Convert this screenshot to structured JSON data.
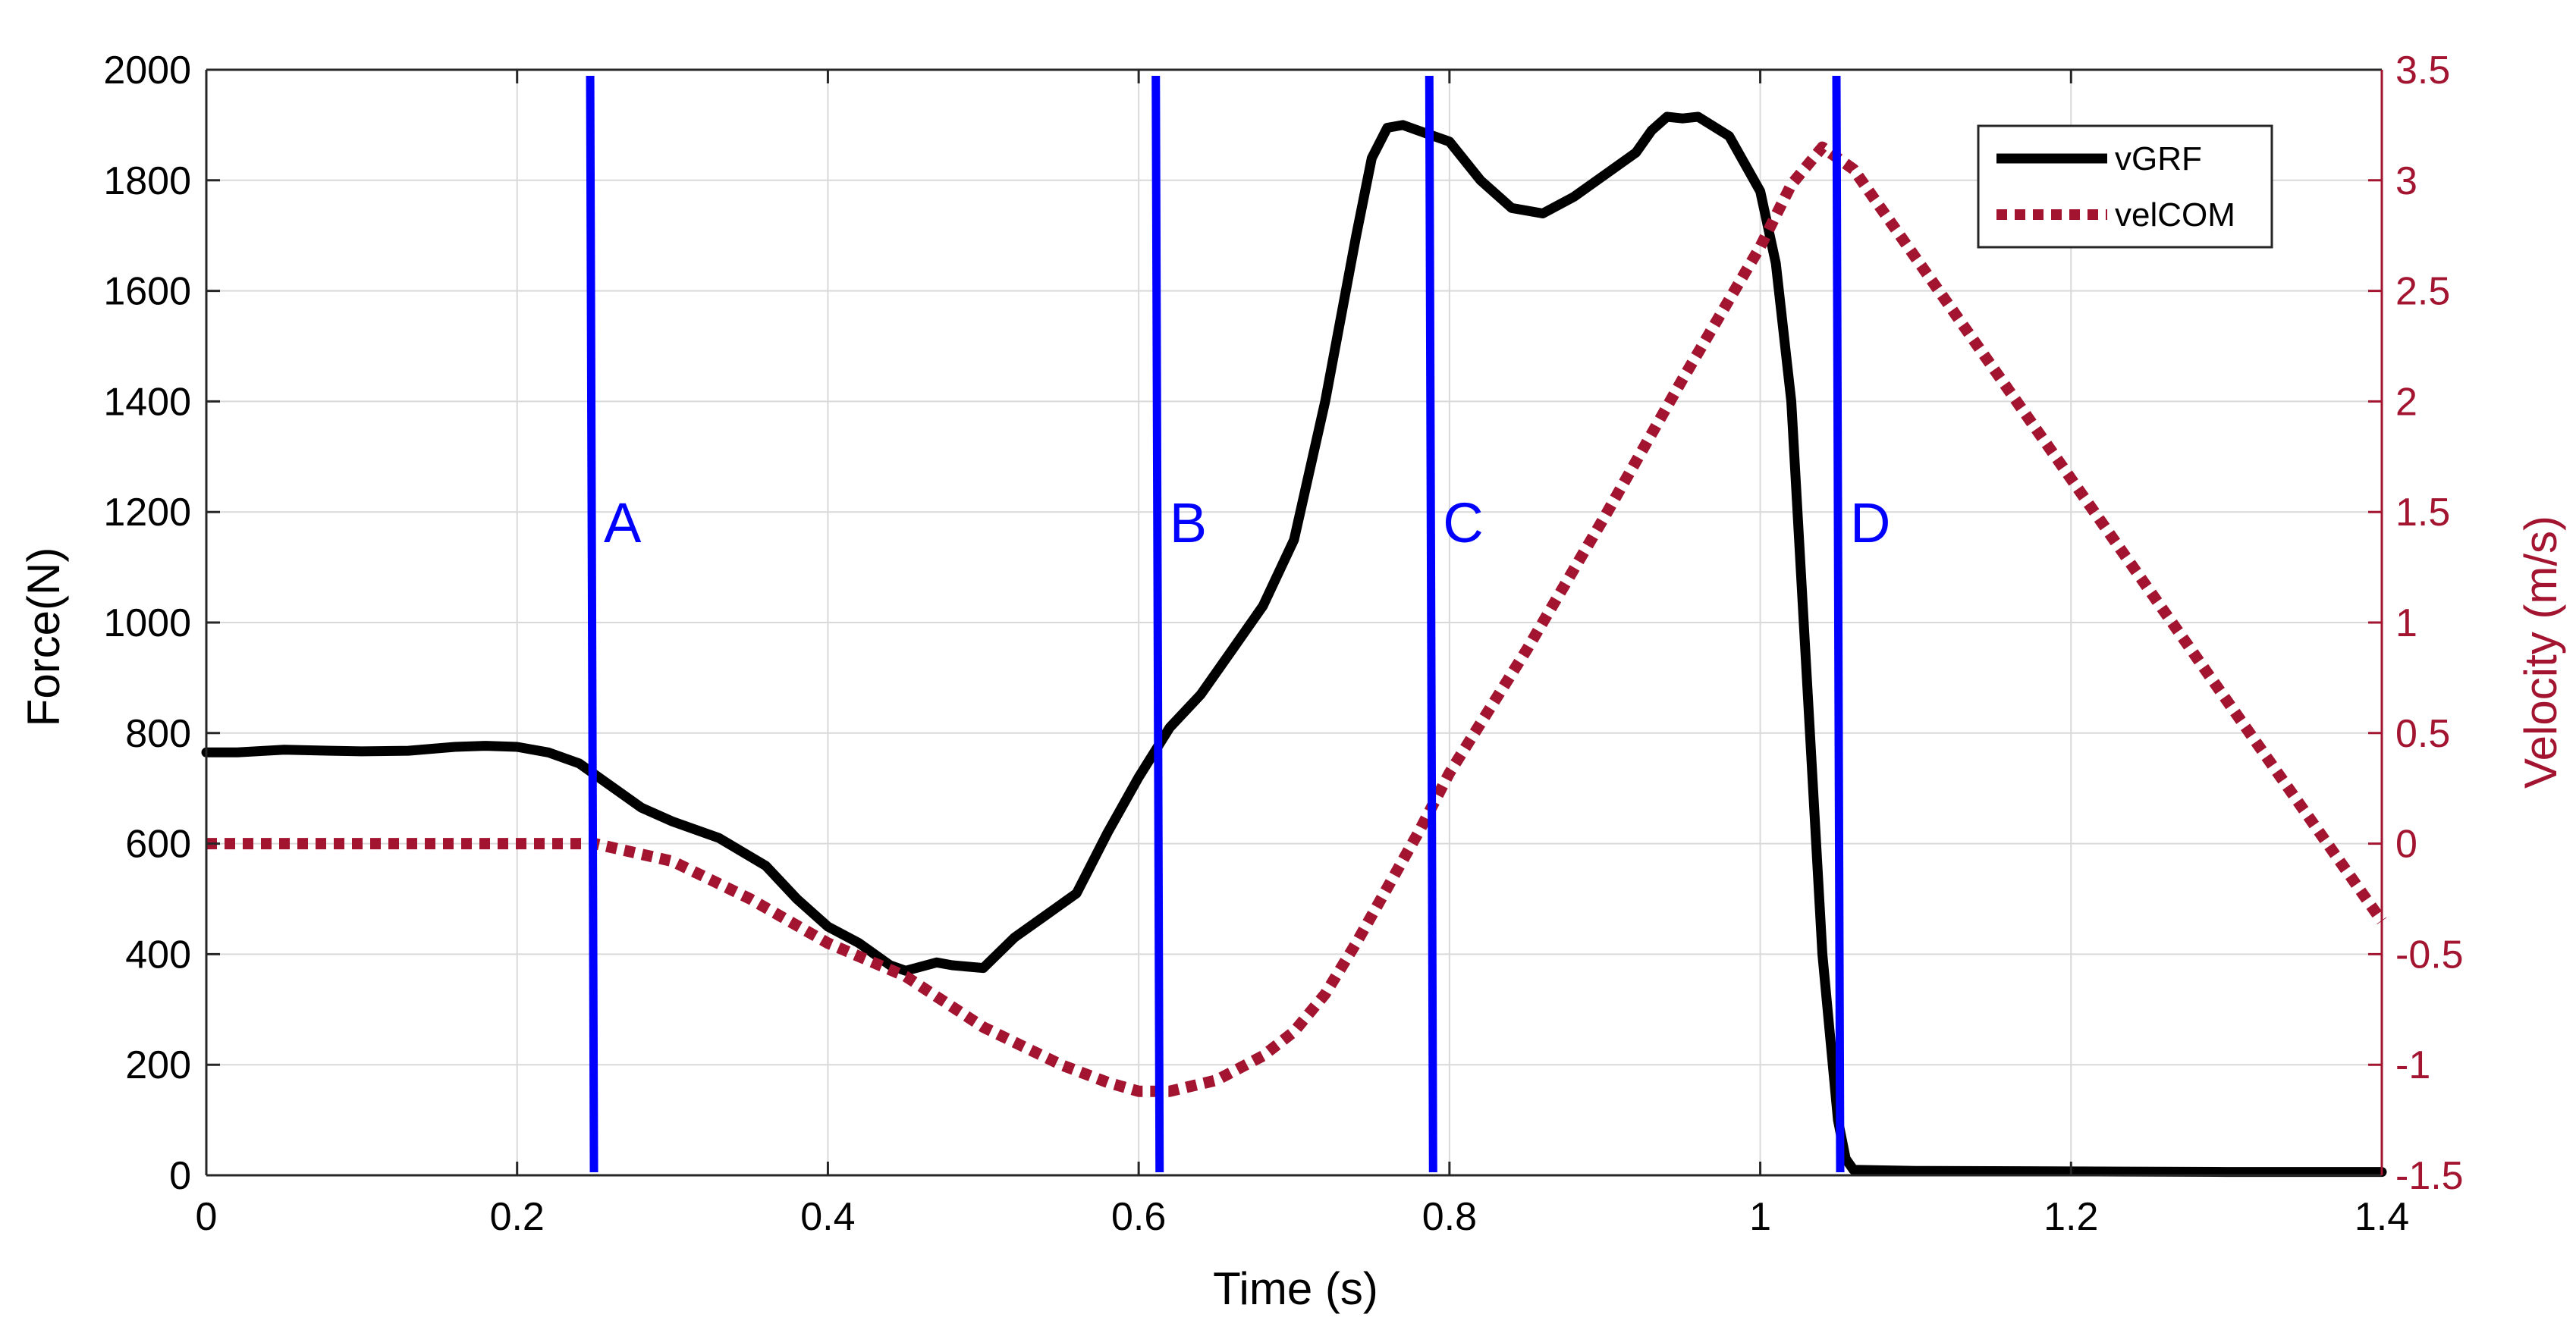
{
  "colors": {
    "vgrf": "#000000",
    "velcom": "#A2142F",
    "markers": "#0000FF",
    "grid": "#D9D9D9",
    "axis": "#262626"
  },
  "chart_data": {
    "type": "line",
    "xlabel": "Time (s)",
    "ylabel_left": "Force(N)",
    "ylabel_right": "Velocity (m/s)",
    "xlim": [
      0,
      1.4
    ],
    "ylim_left": [
      0,
      2000
    ],
    "ylim_right": [
      -1.5,
      3.5
    ],
    "grid": true,
    "legend_position": "top-right",
    "x_ticks": [
      0,
      0.2,
      0.4,
      0.6,
      0.8,
      1,
      1.2,
      1.4
    ],
    "x_tick_labels": [
      "0",
      "0.2",
      "0.4",
      "0.6",
      "0.8",
      "1",
      "1.2",
      "1.4"
    ],
    "y_left_ticks": [
      0,
      200,
      400,
      600,
      800,
      1000,
      1200,
      1400,
      1600,
      1800,
      2000
    ],
    "y_left_tick_labels": [
      "0",
      "200",
      "400",
      "600",
      "800",
      "1000",
      "1200",
      "1400",
      "1600",
      "1800",
      "2000"
    ],
    "y_right_ticks": [
      -1.5,
      -1,
      -0.5,
      0,
      0.5,
      1,
      1.5,
      2,
      2.5,
      3,
      3.5
    ],
    "y_right_tick_labels": [
      "-1.5",
      "-1",
      "-0.5",
      "0",
      "0.5",
      "1",
      "1.5",
      "2",
      "2.5",
      "3",
      "3.5"
    ],
    "series": [
      {
        "name": "vGRF",
        "axis": "left",
        "style": "solid",
        "x": [
          0,
          0.02,
          0.05,
          0.08,
          0.1,
          0.13,
          0.16,
          0.18,
          0.2,
          0.22,
          0.24,
          0.26,
          0.28,
          0.3,
          0.33,
          0.36,
          0.38,
          0.4,
          0.42,
          0.44,
          0.45,
          0.47,
          0.48,
          0.5,
          0.52,
          0.54,
          0.56,
          0.58,
          0.6,
          0.62,
          0.64,
          0.66,
          0.68,
          0.7,
          0.72,
          0.74,
          0.75,
          0.76,
          0.77,
          0.78,
          0.8,
          0.82,
          0.84,
          0.86,
          0.88,
          0.9,
          0.92,
          0.93,
          0.94,
          0.95,
          0.96,
          0.98,
          1.0,
          1.01,
          1.02,
          1.03,
          1.04,
          1.05,
          1.055,
          1.06,
          1.1,
          1.2,
          1.3,
          1.4
        ],
        "values": [
          765,
          765,
          770,
          768,
          767,
          768,
          775,
          777,
          775,
          765,
          745,
          705,
          665,
          640,
          610,
          560,
          500,
          450,
          420,
          380,
          370,
          385,
          380,
          375,
          430,
          470,
          510,
          620,
          720,
          810,
          870,
          950,
          1030,
          1150,
          1400,
          1700,
          1840,
          1895,
          1900,
          1890,
          1870,
          1800,
          1750,
          1740,
          1770,
          1810,
          1850,
          1890,
          1915,
          1912,
          1915,
          1880,
          1780,
          1650,
          1400,
          900,
          400,
          100,
          30,
          10,
          8,
          7,
          6,
          6
        ]
      },
      {
        "name": "velCOM",
        "axis": "right",
        "style": "dotted",
        "x": [
          0,
          0.1,
          0.2,
          0.25,
          0.3,
          0.35,
          0.4,
          0.45,
          0.5,
          0.55,
          0.58,
          0.6,
          0.62,
          0.65,
          0.68,
          0.7,
          0.72,
          0.74,
          0.76,
          0.78,
          0.8,
          0.85,
          0.9,
          0.95,
          1.0,
          1.02,
          1.04,
          1.06,
          1.1,
          1.2,
          1.3,
          1.4
        ],
        "values": [
          0,
          0,
          0,
          0,
          -0.08,
          -0.25,
          -0.45,
          -0.6,
          -0.83,
          -1.0,
          -1.08,
          -1.12,
          -1.12,
          -1.07,
          -0.96,
          -0.85,
          -0.68,
          -0.45,
          -0.2,
          0.05,
          0.32,
          0.88,
          1.48,
          2.1,
          2.7,
          2.98,
          3.15,
          3.05,
          2.65,
          1.65,
          0.65,
          -0.35
        ]
      }
    ],
    "markers": [
      {
        "label": "A",
        "x": 0.248
      },
      {
        "label": "B",
        "x": 0.612
      },
      {
        "label": "C",
        "x": 0.788
      },
      {
        "label": "D",
        "x": 1.05
      }
    ]
  }
}
